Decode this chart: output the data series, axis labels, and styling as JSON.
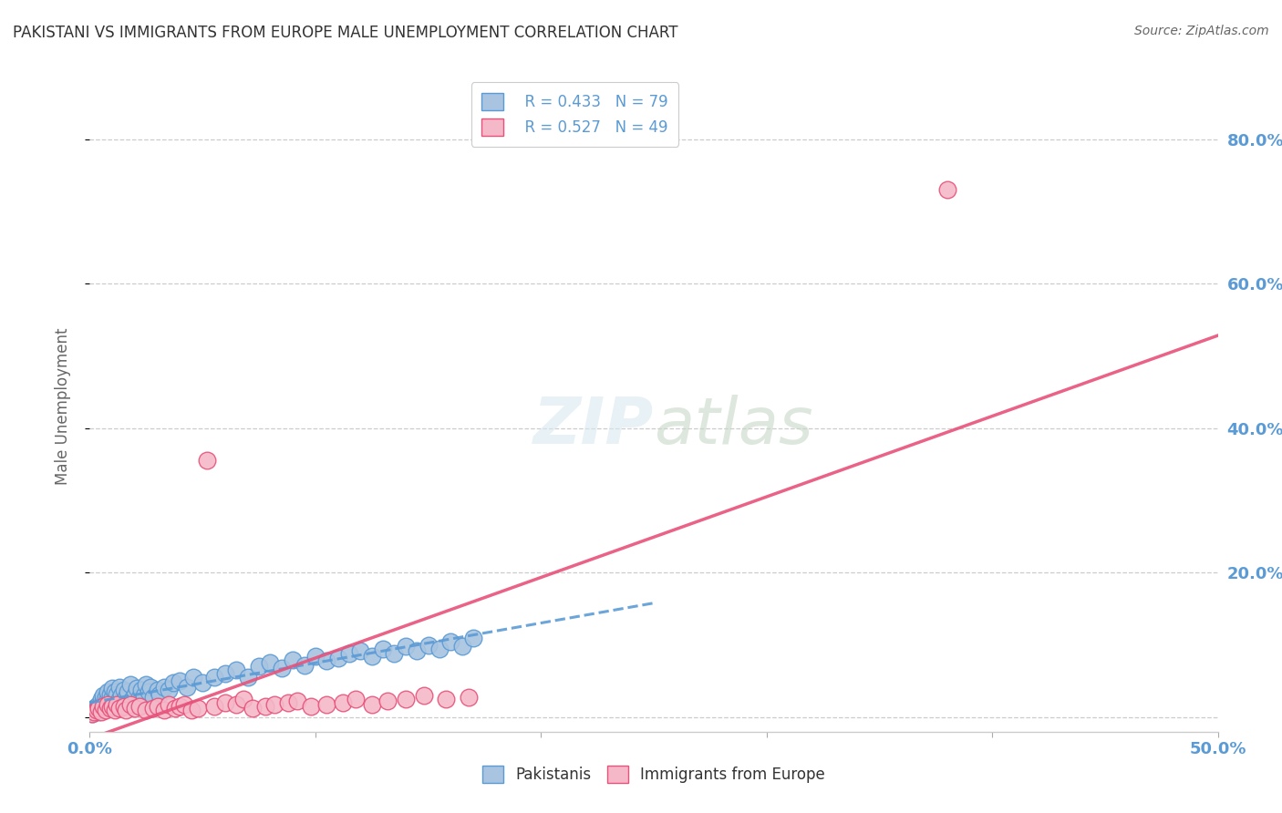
{
  "title": "PAKISTANI VS IMMIGRANTS FROM EUROPE MALE UNEMPLOYMENT CORRELATION CHART",
  "source": "Source: ZipAtlas.com",
  "ylabel": "Male Unemployment",
  "y_ticks": [
    0.0,
    0.2,
    0.4,
    0.6,
    0.8
  ],
  "y_tick_labels_right": [
    "",
    "20.0%",
    "40.0%",
    "60.0%",
    "80.0%"
  ],
  "x_lim": [
    0.0,
    0.5
  ],
  "y_lim": [
    -0.02,
    0.88
  ],
  "color_pakistani_fill": "#a8c4e0",
  "color_pakistani_edge": "#5b9bd5",
  "color_europe_fill": "#f4b8c8",
  "color_europe_edge": "#e8527a",
  "color_line_pakistani": "#5b9bd5",
  "color_line_europe": "#e8527a",
  "color_title": "#333333",
  "color_axis_blue": "#5b9bd5",
  "background_color": "#ffffff",
  "pakistani_x": [
    0.001,
    0.001,
    0.002,
    0.002,
    0.003,
    0.003,
    0.004,
    0.004,
    0.005,
    0.005,
    0.005,
    0.006,
    0.006,
    0.006,
    0.007,
    0.007,
    0.008,
    0.008,
    0.008,
    0.009,
    0.009,
    0.01,
    0.01,
    0.01,
    0.011,
    0.011,
    0.012,
    0.012,
    0.013,
    0.013,
    0.014,
    0.015,
    0.015,
    0.016,
    0.017,
    0.018,
    0.019,
    0.02,
    0.021,
    0.022,
    0.023,
    0.024,
    0.025,
    0.026,
    0.027,
    0.028,
    0.03,
    0.031,
    0.033,
    0.035,
    0.037,
    0.04,
    0.043,
    0.046,
    0.05,
    0.055,
    0.06,
    0.065,
    0.07,
    0.075,
    0.08,
    0.085,
    0.09,
    0.095,
    0.1,
    0.105,
    0.11,
    0.115,
    0.12,
    0.125,
    0.13,
    0.135,
    0.14,
    0.145,
    0.15,
    0.155,
    0.16,
    0.165,
    0.17
  ],
  "pakistani_y": [
    0.005,
    0.01,
    0.008,
    0.012,
    0.01,
    0.015,
    0.008,
    0.018,
    0.012,
    0.02,
    0.025,
    0.015,
    0.022,
    0.03,
    0.018,
    0.028,
    0.012,
    0.025,
    0.035,
    0.02,
    0.032,
    0.015,
    0.028,
    0.04,
    0.022,
    0.035,
    0.018,
    0.032,
    0.025,
    0.042,
    0.03,
    0.02,
    0.038,
    0.028,
    0.035,
    0.045,
    0.025,
    0.032,
    0.04,
    0.028,
    0.038,
    0.03,
    0.045,
    0.035,
    0.042,
    0.028,
    0.038,
    0.032,
    0.042,
    0.038,
    0.048,
    0.05,
    0.042,
    0.055,
    0.048,
    0.055,
    0.06,
    0.065,
    0.055,
    0.07,
    0.075,
    0.068,
    0.08,
    0.072,
    0.085,
    0.078,
    0.082,
    0.088,
    0.092,
    0.085,
    0.095,
    0.088,
    0.098,
    0.092,
    0.1,
    0.095,
    0.105,
    0.098,
    0.11
  ],
  "europe_x": [
    0.001,
    0.002,
    0.003,
    0.004,
    0.005,
    0.006,
    0.007,
    0.008,
    0.009,
    0.01,
    0.011,
    0.012,
    0.013,
    0.015,
    0.016,
    0.018,
    0.02,
    0.022,
    0.025,
    0.028,
    0.03,
    0.033,
    0.035,
    0.038,
    0.04,
    0.042,
    0.045,
    0.048,
    0.052,
    0.055,
    0.06,
    0.065,
    0.068,
    0.072,
    0.078,
    0.082,
    0.088,
    0.092,
    0.098,
    0.105,
    0.112,
    0.118,
    0.125,
    0.132,
    0.14,
    0.148,
    0.158,
    0.168,
    0.38
  ],
  "europe_y": [
    0.005,
    0.008,
    0.01,
    0.012,
    0.008,
    0.015,
    0.01,
    0.018,
    0.012,
    0.015,
    0.01,
    0.018,
    0.012,
    0.015,
    0.01,
    0.018,
    0.012,
    0.015,
    0.01,
    0.012,
    0.015,
    0.01,
    0.018,
    0.012,
    0.015,
    0.018,
    0.01,
    0.012,
    0.355,
    0.015,
    0.02,
    0.018,
    0.025,
    0.012,
    0.015,
    0.018,
    0.02,
    0.022,
    0.015,
    0.018,
    0.02,
    0.025,
    0.018,
    0.022,
    0.025,
    0.03,
    0.025,
    0.028,
    0.73
  ]
}
